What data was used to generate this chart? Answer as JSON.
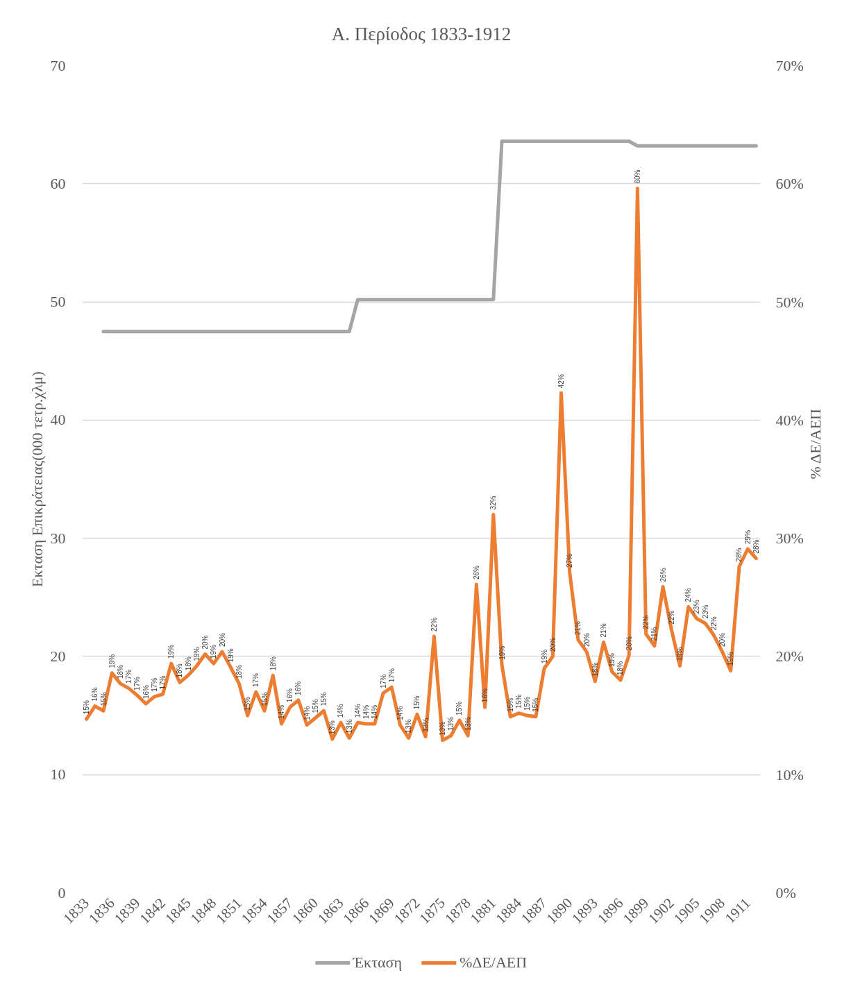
{
  "chart_data": {
    "type": "line",
    "title": "Α. Περίοδος 1833-1912",
    "ylabel": "Εκταση Επικράτειας(000 τετρ.χλμ)",
    "y2label": "% ΔΕ/ΑΕΠ",
    "categories": [
      "1833",
      null,
      null,
      "1836",
      null,
      null,
      "1839",
      null,
      null,
      "1842",
      null,
      null,
      "1845",
      null,
      null,
      "1848",
      null,
      null,
      "1851",
      null,
      null,
      "1854",
      null,
      null,
      "1857",
      null,
      null,
      "1860",
      null,
      null,
      "1863",
      null,
      null,
      "1866",
      null,
      null,
      "1869",
      null,
      null,
      "1872",
      null,
      null,
      "1875",
      null,
      null,
      "1878",
      null,
      null,
      "1881",
      null,
      null,
      "1884",
      null,
      null,
      "1887",
      null,
      null,
      "1890",
      null,
      null,
      "1893",
      null,
      null,
      "1896",
      null,
      null,
      "1899",
      null,
      null,
      "1902",
      null,
      null,
      "1905",
      null,
      null,
      "1908",
      null,
      null,
      "1911",
      null
    ],
    "series": [
      {
        "name": "Έκταση",
        "color": "#a5a5a5",
        "values": [
          null,
          null,
          47.5,
          47.5,
          47.5,
          47.5,
          47.5,
          47.5,
          47.5,
          47.5,
          47.5,
          47.5,
          47.5,
          47.5,
          47.5,
          47.5,
          47.5,
          47.5,
          47.5,
          47.5,
          47.5,
          47.5,
          47.5,
          47.5,
          47.5,
          47.5,
          47.5,
          47.5,
          47.5,
          47.5,
          47.5,
          47.5,
          50.2,
          50.2,
          50.2,
          50.2,
          50.2,
          50.2,
          50.2,
          50.2,
          50.2,
          50.2,
          50.2,
          50.2,
          50.2,
          50.2,
          50.2,
          50.2,
          50.2,
          63.6,
          63.6,
          63.6,
          63.6,
          63.6,
          63.6,
          63.6,
          63.6,
          63.6,
          63.6,
          63.6,
          63.6,
          63.6,
          63.6,
          63.6,
          63.6,
          63.2,
          63.2,
          63.2,
          63.2,
          63.2,
          63.2,
          63.2,
          63.2,
          63.2,
          63.2,
          63.2,
          63.2,
          63.2,
          63.2,
          63.2
        ]
      },
      {
        "name": "%ΔΕ/ΑΕΠ",
        "color": "#ed7d31",
        "axis": "y2",
        "values": [
          14.7,
          15.8,
          15.4,
          18.6,
          17.7,
          17.3,
          16.7,
          16.0,
          16.6,
          16.8,
          19.4,
          17.8,
          18.4,
          19.2,
          20.2,
          19.4,
          20.4,
          19.1,
          17.7,
          15.0,
          17.0,
          15.4,
          18.4,
          14.3,
          15.7,
          16.3,
          14.2,
          14.8,
          15.4,
          13.0,
          14.4,
          13.1,
          14.4,
          14.3,
          14.3,
          16.9,
          17.4,
          14.2,
          13.1,
          15.1,
          13.2,
          21.7,
          12.9,
          13.3,
          14.6,
          13.3,
          26.1,
          15.7,
          32.0,
          19.3,
          14.9,
          15.2,
          15.0,
          14.9,
          19.0,
          20.0,
          42.3,
          27.1,
          21.4,
          20.4,
          17.9,
          21.2,
          18.7,
          18.0,
          20.1,
          59.6,
          21.9,
          20.9,
          25.9,
          22.3,
          19.2,
          24.2,
          23.2,
          22.8,
          21.8,
          20.4,
          18.8,
          27.6,
          29.1,
          28.3
        ],
        "value_labels": [
          "15%",
          "16%",
          "15%",
          "19%",
          "18%",
          "17%",
          "17%",
          "16%",
          "17%",
          "17%",
          "19%",
          "18%",
          "18%",
          "19%",
          "20%",
          "19%",
          "20%",
          "19%",
          "18%",
          "15%",
          "17%",
          "15%",
          "18%",
          "14%",
          "16%",
          "16%",
          "14%",
          "15%",
          "15%",
          "13%",
          "14%",
          "13%",
          "14%",
          "14%",
          "14%",
          "17%",
          "17%",
          "14%",
          "13%",
          "15%",
          "13%",
          "22%",
          "13%",
          "13%",
          "15%",
          "13%",
          "26%",
          "16%",
          "32%",
          "19%",
          "15%",
          "15%",
          "15%",
          "15%",
          "19%",
          "20%",
          "42%",
          "27%",
          "21%",
          "20%",
          "18%",
          "21%",
          "19%",
          "18%",
          "20%",
          "60%",
          "22%",
          "21%",
          "26%",
          "22%",
          "19%",
          "24%",
          "23%",
          "23%",
          "22%",
          "20%",
          "19%",
          "28%",
          "29%",
          "28%"
        ]
      }
    ],
    "ylim": [
      0,
      70
    ],
    "yticks": [
      0,
      10,
      20,
      30,
      40,
      50,
      60,
      70
    ],
    "y2lim": [
      0,
      70
    ],
    "y2ticks": [
      {
        "value": 0,
        "label": "0%"
      },
      {
        "value": 10,
        "label": "10%"
      },
      {
        "value": 20,
        "label": "20%"
      },
      {
        "value": 30,
        "label": "30%"
      },
      {
        "value": 40,
        "label": "40%"
      },
      {
        "value": 50,
        "label": "50%"
      },
      {
        "value": 60,
        "label": "60%"
      },
      {
        "value": 70,
        "label": "70%"
      }
    ],
    "grid": "y",
    "legend": "bottom",
    "line_style": "solid"
  }
}
